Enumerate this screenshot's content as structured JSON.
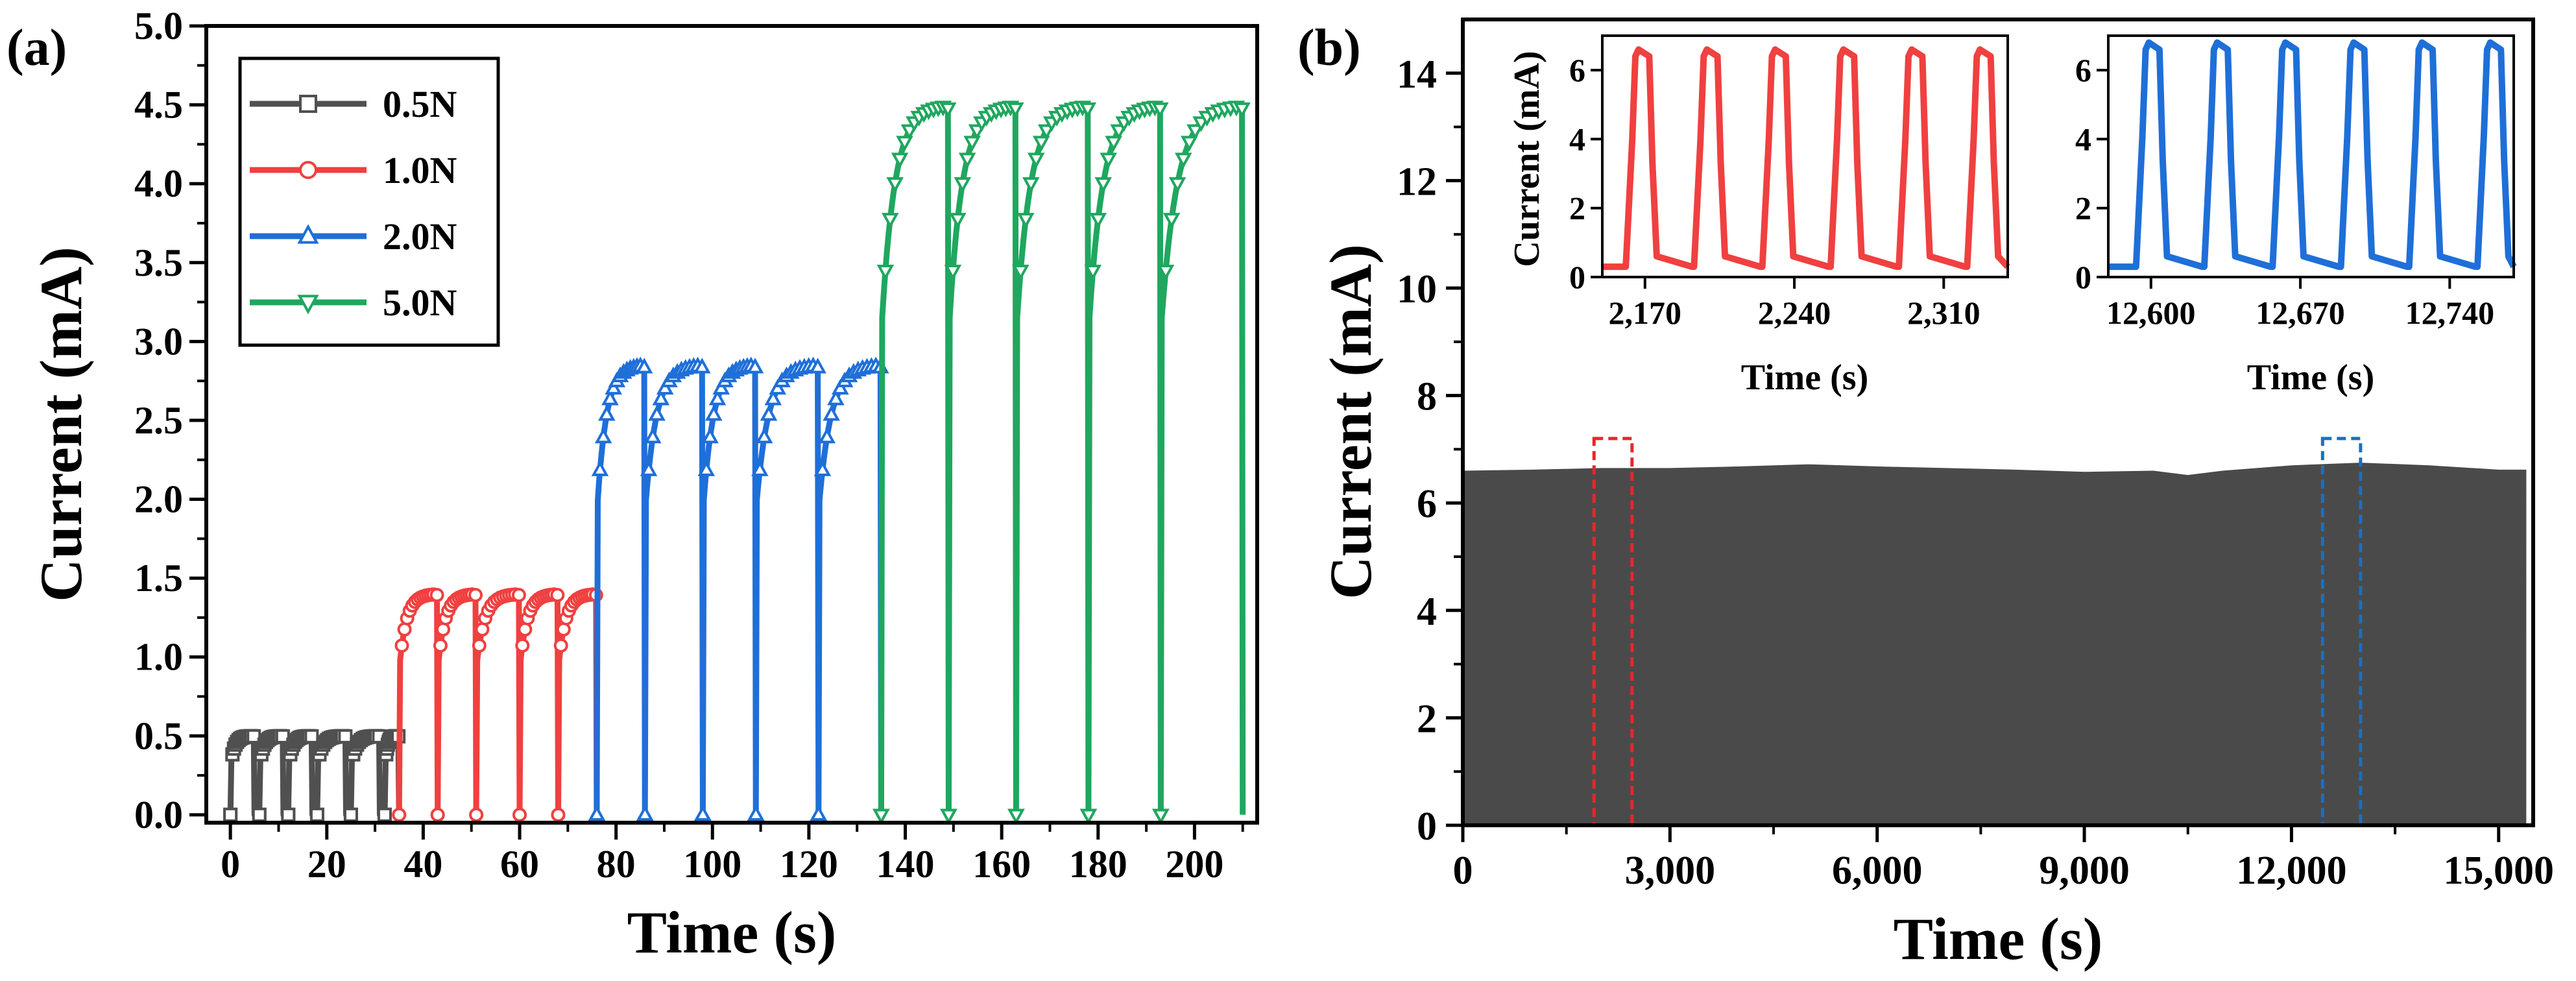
{
  "chart_data": [
    {
      "panel_label": "(a)",
      "type": "line",
      "xlabel": "Time (s)",
      "ylabel": "Current (mA)",
      "xlim": [
        -5,
        213
      ],
      "ylim": [
        -0.05,
        5.0
      ],
      "xticks": [
        0,
        20,
        40,
        60,
        80,
        100,
        120,
        140,
        160,
        180,
        200
      ],
      "yticks": [
        0.0,
        0.5,
        1.0,
        1.5,
        2.0,
        2.5,
        3.0,
        3.5,
        4.0,
        4.5,
        5.0
      ],
      "xtick_labels": [
        "0",
        "20",
        "40",
        "60",
        "80",
        "100",
        "120",
        "140",
        "160",
        "180",
        "200"
      ],
      "ytick_labels": [
        "0.0",
        "0.5",
        "1.0",
        "1.5",
        "2.0",
        "2.5",
        "3.0",
        "3.5",
        "4.0",
        "4.5",
        "5.0"
      ],
      "legend": "top-left",
      "series": [
        {
          "name": "0.5N",
          "color": "#505050",
          "marker": "square",
          "x_range": [
            0,
            35
          ],
          "peak": 0.5,
          "pulses": [
            [
              0,
              5
            ],
            [
              6,
              11
            ],
            [
              12,
              17
            ],
            [
              18,
              24
            ],
            [
              25,
              31
            ],
            [
              32,
              35
            ]
          ]
        },
        {
          "name": "1.0N",
          "color": "#f04040",
          "marker": "circle",
          "x_range": [
            35,
            76
          ],
          "peak": 1.4,
          "pulses": [
            [
              35,
              43
            ],
            [
              43,
              51
            ],
            [
              51,
              60
            ],
            [
              60,
              68
            ],
            [
              68,
              76
            ]
          ]
        },
        {
          "name": "2.0N",
          "color": "#1f6fd8",
          "marker": "triangle-up",
          "x_range": [
            76,
            135
          ],
          "peak": 2.85,
          "pulses": [
            [
              76,
              86
            ],
            [
              86,
              98
            ],
            [
              98,
              109
            ],
            [
              109,
              122
            ],
            [
              122,
              135
            ]
          ]
        },
        {
          "name": "5.0N",
          "color": "#1fa75f",
          "marker": "triangle-down",
          "x_range": [
            135,
            210
          ],
          "peak": 4.5,
          "pulses": [
            [
              135,
              149
            ],
            [
              149,
              163
            ],
            [
              163,
              178
            ],
            [
              178,
              193
            ],
            [
              193,
              210
            ]
          ]
        }
      ]
    },
    {
      "panel_label": "(b)",
      "type": "area",
      "xlabel": "Time (s)",
      "ylabel": "Current (mA)",
      "xlim": [
        0,
        15500
      ],
      "ylim": [
        0,
        15
      ],
      "xticks": [
        0,
        3000,
        6000,
        9000,
        12000,
        15000
      ],
      "yticks": [
        0,
        2,
        4,
        6,
        8,
        10,
        12,
        14
      ],
      "xtick_labels": [
        "0",
        "3,000",
        "6,000",
        "9,000",
        "12,000",
        "15,000"
      ],
      "ytick_labels": [
        "0",
        "2",
        "4",
        "6",
        "8",
        "10",
        "12",
        "14"
      ],
      "fill_color": "#4a4a4a",
      "envelope_x": [
        0,
        1000,
        2000,
        3000,
        4000,
        5000,
        6000,
        7000,
        8000,
        9000,
        10000,
        10500,
        11000,
        12000,
        13000,
        14000,
        15000,
        15400
      ],
      "envelope_y": [
        6.6,
        6.62,
        6.65,
        6.65,
        6.68,
        6.72,
        6.68,
        6.65,
        6.62,
        6.58,
        6.6,
        6.52,
        6.6,
        6.7,
        6.75,
        6.7,
        6.62,
        6.62
      ],
      "highlight_boxes": [
        {
          "x": [
            1900,
            2450
          ],
          "y": [
            0,
            7.2
          ],
          "color": "#e8262c"
        },
        {
          "x": [
            12450,
            13000
          ],
          "y": [
            0,
            7.2
          ],
          "color": "#1c6fbf"
        }
      ],
      "insets": [
        {
          "type": "line",
          "color": "#f04040",
          "xlabel": "Time (s)",
          "ylabel": "Current (mA)",
          "xlim": [
            2150,
            2340
          ],
          "ylim": [
            0,
            7
          ],
          "xticks": [
            2170,
            2240,
            2310
          ],
          "yticks": [
            0,
            2,
            4,
            6
          ],
          "xtick_labels": [
            "2,170",
            "2,240",
            "2,310"
          ],
          "ytick_labels": [
            "0",
            "2",
            "4",
            "6"
          ],
          "baseline": 0.3,
          "peak": 6.6,
          "pulse_starts": [
            2163,
            2195,
            2227,
            2259,
            2291,
            2323
          ]
        },
        {
          "type": "line",
          "color": "#1f6fd8",
          "xlabel": "Time (s)",
          "ylabel": "",
          "xlim": [
            12580,
            12770
          ],
          "ylim": [
            0,
            7
          ],
          "xticks": [
            12600,
            12670,
            12740
          ],
          "yticks": [
            0,
            2,
            4,
            6
          ],
          "xtick_labels": [
            "12,600",
            "12,670",
            "12,740"
          ],
          "ytick_labels": [
            "0",
            "2",
            "4",
            "6"
          ],
          "baseline": 0.3,
          "peak": 6.8,
          "pulse_starts": [
            12595,
            12627,
            12659,
            12691,
            12723,
            12755
          ]
        }
      ]
    }
  ]
}
